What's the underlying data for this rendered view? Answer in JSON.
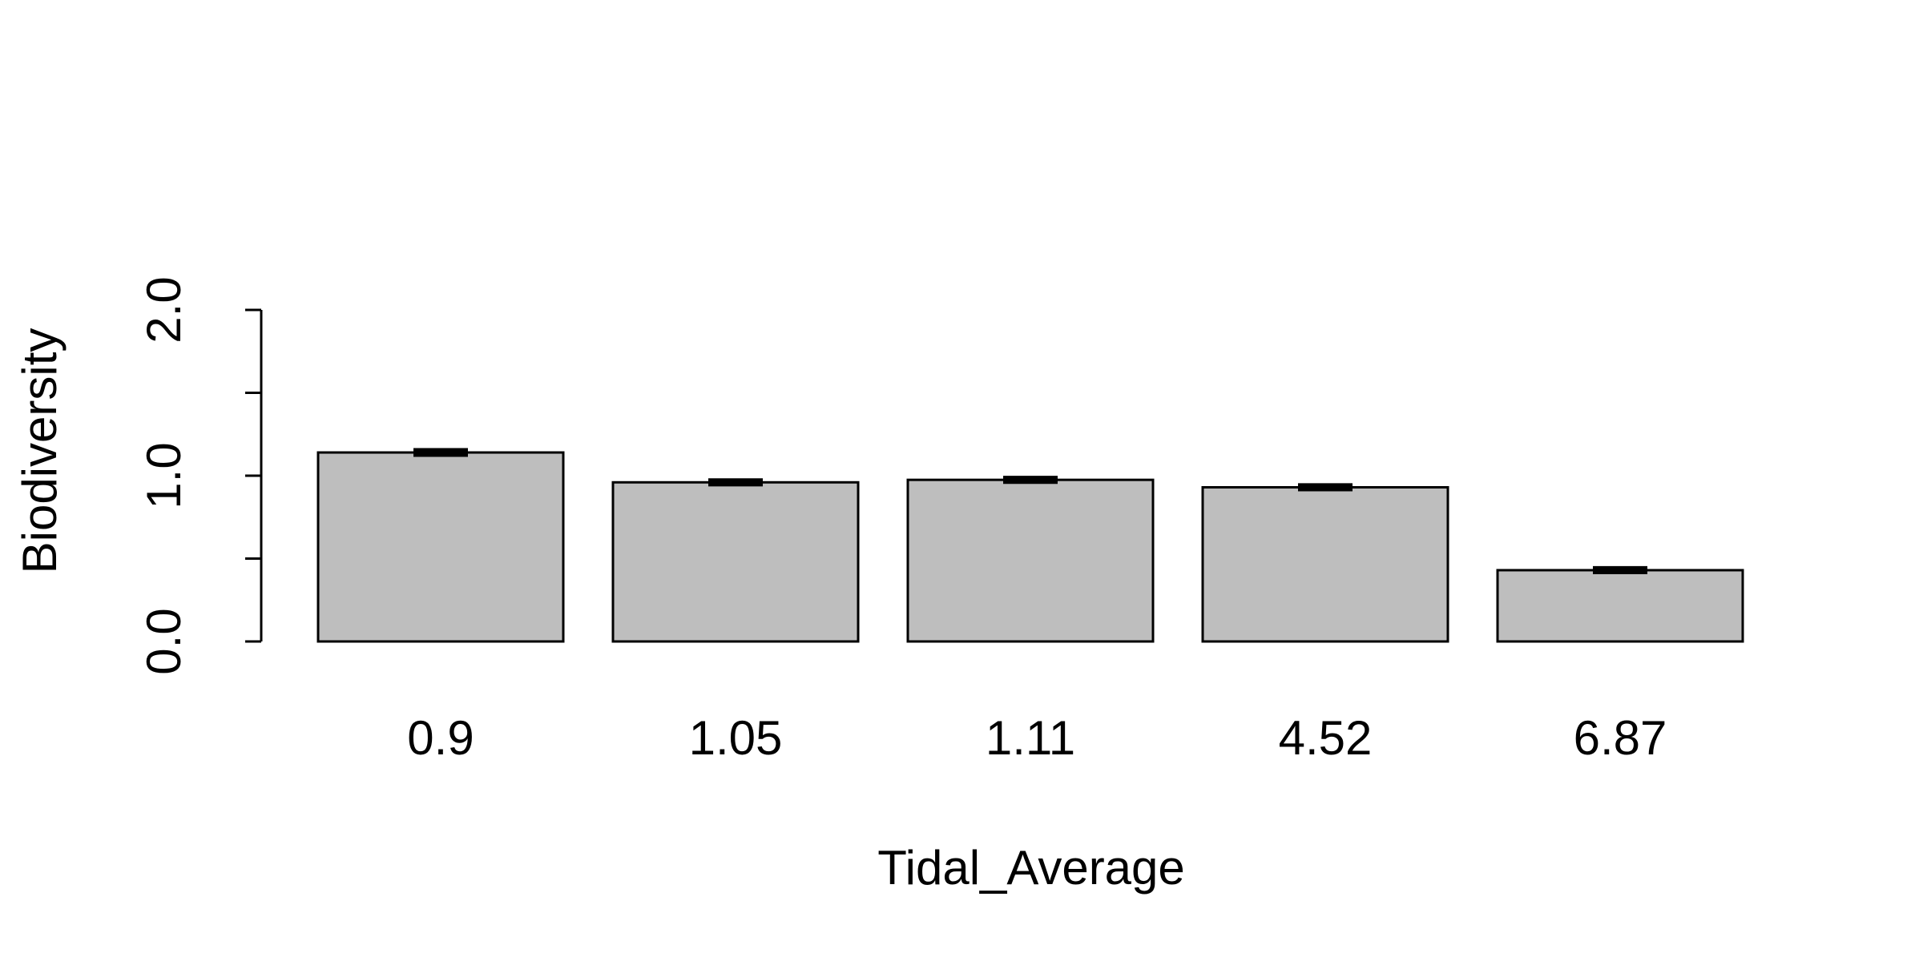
{
  "chart_data": {
    "type": "bar",
    "categories": [
      "0.9",
      "1.05",
      "1.11",
      "4.52",
      "6.87"
    ],
    "values": [
      1.14,
      0.96,
      0.975,
      0.93,
      0.43
    ],
    "error": [
      0.012,
      0.01,
      0.01,
      0.01,
      0.01
    ],
    "title": "",
    "xlabel": "Tidal_Average",
    "ylabel": "Biodiversity",
    "ylim": [
      0,
      2
    ],
    "yticks": [
      0,
      0.5,
      1,
      1.5,
      2
    ],
    "ytick_labels": [
      "0.0",
      "",
      "1.0",
      "",
      "2.0"
    ],
    "grid": false,
    "bar_color": "#bebebe"
  }
}
